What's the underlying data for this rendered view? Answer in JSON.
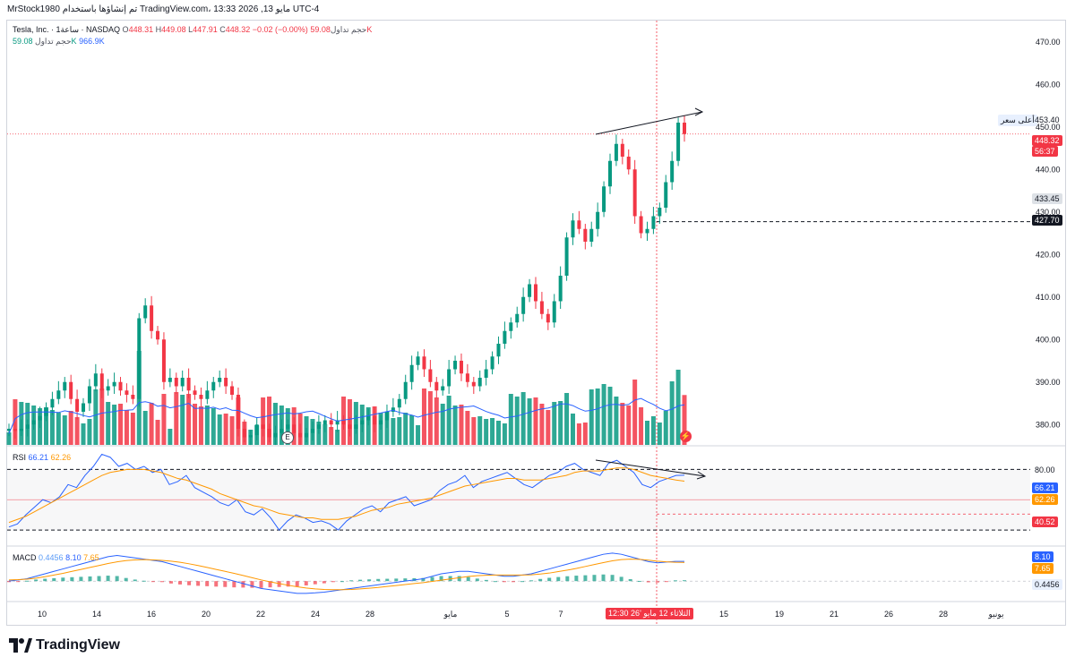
{
  "caption": "MrStock1980 تم إنشاؤها باستخدام TradingView.com، مايو 13, 2026 13:33 UTC-4",
  "header": {
    "symbol": "Tesla, Inc. · 1ساعة · NASDAQ",
    "o_label": "O",
    "o": "448.31",
    "h_label": "H",
    "h": "449.08",
    "l_label": "L",
    "l": "447.91",
    "c_label": "C",
    "c": "448.32",
    "change": "−0.02 (−0.00%)",
    "vol_label": "حجم تداول",
    "vol": "59.08K",
    "vol2_label": "حجم تداول",
    "vol2_a": "59.08K",
    "vol2_b": "966.9K"
  },
  "rsi_legend": {
    "label": "RSI",
    "v1": "66.21",
    "v2": "62.26"
  },
  "macd_legend": {
    "label": "MACD",
    "v1": "0.4456",
    "v2": "8.10",
    "v3": "7.65"
  },
  "price_axis": {
    "ticks": [
      "470.00",
      "460.00",
      "450.00",
      "440.00",
      "430.00",
      "420.00",
      "410.00",
      "400.00",
      "390.00",
      "380.00"
    ],
    "high_label": "أعلى سعر",
    "high_value": "453.40",
    "last_price": "448.32",
    "countdown": "56:37",
    "level_433": "433.45",
    "level_427": "427.70"
  },
  "rsi_axis": {
    "tick80": "80.00",
    "v1": "66.21",
    "v2": "62.26",
    "v3": "40.52"
  },
  "macd_axis": {
    "v1": "8.10",
    "v2": "7.65",
    "v3": "0.4456"
  },
  "time_axis": {
    "labels": [
      "10",
      "14",
      "16",
      "20",
      "22",
      "24",
      "28",
      "مايو",
      "5",
      "7",
      "15",
      "19",
      "21",
      "26",
      "28",
      "يونيو"
    ],
    "crosshair": "الثلاثاء 12 مايو '26   12:30"
  },
  "markers": {
    "earnings": "E"
  },
  "brand": "TradingView",
  "colors": {
    "up": "#089981",
    "down": "#f23645",
    "vol_ma": "#2962ff",
    "rsi": "#2962ff",
    "rsi_ma": "#ff9800",
    "macd": "#2962ff",
    "signal": "#ff9800"
  },
  "chart_data": [
    {
      "type": "candlestick",
      "title": "Tesla, Inc. · 1ساعة · NASDAQ",
      "ylim": [
        375,
        475
      ],
      "y_ticks": [
        380,
        390,
        400,
        410,
        420,
        430,
        440,
        450,
        460,
        470
      ],
      "x_tick_labels": [
        "10",
        "14",
        "16",
        "20",
        "22",
        "24",
        "28",
        "مايو",
        "5",
        "7",
        "15",
        "19",
        "21",
        "26",
        "28",
        "يونيو"
      ],
      "key_levels": {
        "high": 453.4,
        "last": 448.32,
        "level_a": 433.45,
        "level_b": 427.7
      },
      "close_path": [
        379,
        378.5,
        379,
        380,
        381,
        382,
        384,
        386,
        388,
        390,
        386,
        383,
        385,
        389,
        392,
        388,
        389,
        390,
        388,
        387,
        386,
        405,
        408,
        402,
        400,
        390,
        391,
        389,
        391,
        388,
        387,
        386,
        388,
        390,
        391,
        389,
        387,
        379,
        377,
        377.5,
        380,
        379,
        377,
        378,
        379,
        380,
        378,
        377,
        378,
        379,
        380,
        381,
        380,
        381,
        380,
        379,
        380,
        381,
        382,
        380,
        381,
        383,
        384,
        386,
        390,
        394,
        396,
        393,
        390,
        388,
        389,
        393,
        395,
        392,
        390,
        389,
        391,
        393,
        396,
        399,
        402,
        404,
        406,
        410,
        413,
        409,
        406,
        404,
        409,
        415,
        424,
        428,
        426,
        423,
        426,
        430,
        436,
        442,
        446,
        443,
        440,
        429,
        425,
        426,
        429,
        431,
        437,
        442,
        451,
        448.32
      ],
      "volume_max": 100
    },
    {
      "type": "line",
      "title": "RSI",
      "ylim": [
        20,
        85
      ],
      "levels": [
        70,
        50,
        30
      ],
      "series": [
        {
          "name": "RSI",
          "latest": 66.21,
          "values": [
            32,
            34,
            40,
            45,
            50,
            48,
            52,
            60,
            58,
            66,
            72,
            80,
            78,
            72,
            74,
            70,
            72,
            68,
            70,
            60,
            62,
            66,
            58,
            55,
            52,
            48,
            46,
            50,
            42,
            40,
            44,
            38,
            30,
            36,
            40,
            38,
            35,
            36,
            34,
            30,
            36,
            40,
            44,
            46,
            42,
            48,
            50,
            52,
            46,
            48,
            50,
            56,
            60,
            62,
            66,
            58,
            62,
            64,
            66,
            68,
            64,
            60,
            58,
            62,
            66,
            68,
            72,
            74,
            70,
            68,
            66,
            74,
            76,
            72,
            68,
            60,
            58,
            62,
            64,
            66,
            66.21
          ]
        },
        {
          "name": "RSI MA",
          "latest": 62.26,
          "values": [
            35,
            37,
            39,
            42,
            45,
            48,
            51,
            54,
            57,
            60,
            63,
            66,
            68,
            69,
            70,
            70,
            70,
            69,
            68,
            66,
            64,
            63,
            61,
            59,
            57,
            54,
            52,
            50,
            48,
            46,
            45,
            43,
            41,
            40,
            39,
            38,
            38,
            37,
            37,
            37,
            38,
            39,
            41,
            43,
            44,
            45,
            47,
            48,
            49,
            50,
            51,
            53,
            55,
            57,
            59,
            60,
            61,
            62,
            63,
            64,
            64,
            63,
            63,
            63,
            64,
            65,
            66,
            68,
            69,
            69,
            69,
            70,
            71,
            71,
            70,
            68,
            66,
            65,
            64,
            63,
            62.26
          ]
        }
      ]
    },
    {
      "type": "line",
      "title": "MACD",
      "ylim": [
        -8,
        14
      ],
      "series": [
        {
          "name": "MACD",
          "latest": 8.1,
          "values": [
            0,
            0.5,
            1,
            2,
            3,
            4,
            5,
            6,
            7,
            8,
            9,
            10,
            10.5,
            10,
            9.5,
            9,
            8.5,
            8,
            7,
            6,
            5,
            4,
            3,
            2,
            1,
            0,
            -1,
            -2,
            -3,
            -3.5,
            -4,
            -4.5,
            -5,
            -5,
            -4.8,
            -4.5,
            -4,
            -3.5,
            -3,
            -2.5,
            -2,
            -1.5,
            -1,
            -0.5,
            0,
            0.5,
            1,
            2,
            3,
            3.5,
            4,
            4,
            3.5,
            3,
            2.5,
            2,
            2,
            2.5,
            3,
            4,
            5,
            6,
            7,
            8,
            9,
            10,
            11,
            11.5,
            11,
            10,
            9,
            8,
            7.5,
            7.8,
            8.1,
            8.1
          ]
        },
        {
          "name": "Signal",
          "latest": 7.65,
          "values": [
            0.5,
            0.6,
            0.8,
            1.2,
            1.8,
            2.5,
            3.2,
            4,
            4.8,
            5.6,
            6.4,
            7.2,
            7.9,
            8.4,
            8.7,
            8.8,
            8.7,
            8.5,
            8.2,
            7.7,
            7.1,
            6.4,
            5.6,
            4.8,
            4,
            3.2,
            2.3,
            1.4,
            0.5,
            -0.3,
            -1,
            -1.7,
            -2.3,
            -2.8,
            -3.2,
            -3.4,
            -3.5,
            -3.5,
            -3.4,
            -3.2,
            -2.9,
            -2.6,
            -2.2,
            -1.8,
            -1.4,
            -1,
            -0.6,
            -0.1,
            0.4,
            0.9,
            1.4,
            1.9,
            2.2,
            2.4,
            2.5,
            2.5,
            2.5,
            2.5,
            2.6,
            2.9,
            3.3,
            3.9,
            4.5,
            5.2,
            6,
            6.8,
            7.6,
            8.3,
            8.8,
            9,
            8.9,
            8.6,
            8.2,
            7.9,
            7.7,
            7.65
          ]
        },
        {
          "name": "Histogram",
          "latest": 0.4456
        }
      ]
    }
  ]
}
